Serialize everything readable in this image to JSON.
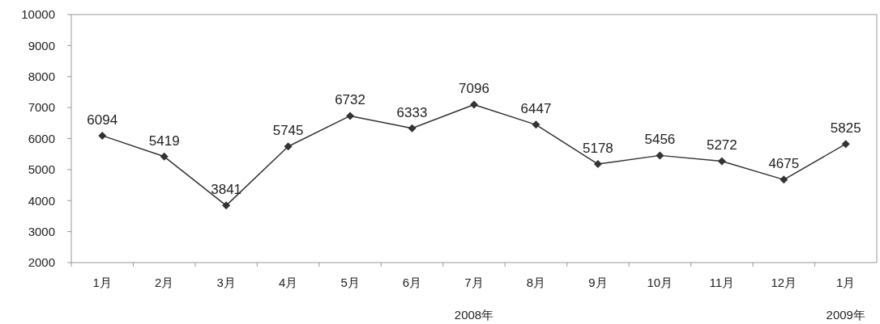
{
  "chart_data": {
    "type": "line",
    "categories": [
      "1月",
      "2月",
      "3月",
      "4月",
      "5月",
      "6月",
      "7月",
      "8月",
      "9月",
      "10月",
      "11月",
      "12月",
      "1月"
    ],
    "series": [
      {
        "color": "#333333",
        "values": [
          6094,
          5419,
          3841,
          5745,
          6732,
          6333,
          7096,
          6447,
          5178,
          5456,
          5272,
          4675,
          5825
        ]
      }
    ],
    "ylim": [
      2000,
      10000
    ],
    "yticks": [
      2000,
      3000,
      4000,
      5000,
      6000,
      7000,
      8000,
      9000,
      10000
    ],
    "xlabel": "2008年",
    "annotations": [
      "2009年"
    ],
    "data_labels": true,
    "marker": "diamond",
    "line_style": "solid",
    "grid": false
  }
}
